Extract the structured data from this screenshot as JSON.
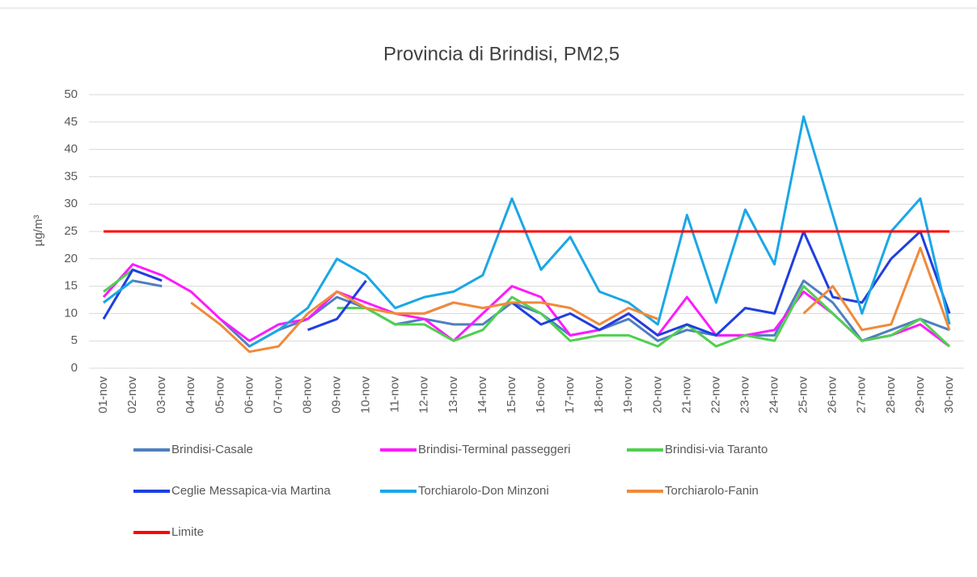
{
  "chart_data": {
    "type": "line",
    "title": "Provincia di Brindisi, PM2,5",
    "y_label": "µg/m³",
    "categories": [
      "01-nov",
      "02-nov",
      "03-nov",
      "04-nov",
      "05-nov",
      "06-nov",
      "07-nov",
      "08-nov",
      "09-nov",
      "10-nov",
      "11-nov",
      "12-nov",
      "13-nov",
      "14-nov",
      "15-nov",
      "16-nov",
      "17-nov",
      "18-nov",
      "19-nov",
      "20-nov",
      "21-nov",
      "22-nov",
      "23-nov",
      "24-nov",
      "25-nov",
      "26-nov",
      "27-nov",
      "28-nov",
      "29-nov",
      "30-nov"
    ],
    "ylim": [
      0,
      50
    ],
    "yticks": [
      0,
      5,
      10,
      15,
      20,
      25,
      30,
      35,
      40,
      45,
      50
    ],
    "grid": true,
    "series": [
      {
        "name": "Brindisi-Casale",
        "color": "#4f7fbf",
        "values": [
          12,
          16,
          15,
          null,
          9,
          4,
          7,
          9,
          13,
          11,
          8,
          9,
          8,
          8,
          12,
          10,
          6,
          7,
          9,
          5,
          7,
          6,
          6,
          6,
          16,
          12,
          5,
          7,
          9,
          7
        ]
      },
      {
        "name": "Brindisi-Terminal passeggeri",
        "color": "#ff1aff",
        "values": [
          13,
          19,
          17,
          14,
          9,
          5,
          8,
          9,
          14,
          12,
          10,
          9,
          5,
          10,
          15,
          13,
          6,
          7,
          10,
          6,
          13,
          6,
          6,
          7,
          14,
          10,
          5,
          6,
          8,
          4
        ]
      },
      {
        "name": "Brindisi-via Taranto",
        "color": "#4fd04f",
        "values": [
          14,
          18,
          null,
          null,
          null,
          null,
          null,
          null,
          11,
          11,
          8,
          8,
          5,
          7,
          13,
          10,
          5,
          6,
          6,
          4,
          8,
          4,
          6,
          5,
          15,
          10,
          5,
          6,
          9,
          4
        ]
      },
      {
        "name": "Ceglie Messapica-via Martina",
        "color": "#1f3fe0",
        "values": [
          9,
          18,
          16,
          null,
          null,
          null,
          null,
          7,
          9,
          16,
          null,
          10,
          12,
          null,
          12,
          8,
          10,
          7,
          10,
          6,
          8,
          6,
          11,
          10,
          25,
          13,
          12,
          20,
          25,
          10
        ]
      },
      {
        "name": "Torchiarolo-Don Minzoni",
        "color": "#1aa7e6",
        "values": [
          12,
          16,
          null,
          null,
          null,
          4,
          7,
          11,
          20,
          17,
          11,
          13,
          14,
          17,
          31,
          18,
          24,
          14,
          12,
          8,
          28,
          12,
          29,
          19,
          46,
          28,
          10,
          25,
          31,
          8
        ]
      },
      {
        "name": "Torchiarolo-Fanin",
        "color": "#f08a3a",
        "values": [
          null,
          null,
          null,
          12,
          8,
          3,
          4,
          10,
          14,
          11,
          10,
          10,
          12,
          11,
          12,
          12,
          11,
          8,
          11,
          9,
          null,
          null,
          null,
          null,
          10,
          15,
          7,
          8,
          22,
          7
        ]
      },
      {
        "name": "Limite",
        "color": "#ff0000",
        "values": [
          25,
          25,
          25,
          25,
          25,
          25,
          25,
          25,
          25,
          25,
          25,
          25,
          25,
          25,
          25,
          25,
          25,
          25,
          25,
          25,
          25,
          25,
          25,
          25,
          25,
          25,
          25,
          25,
          25,
          25
        ]
      }
    ]
  }
}
